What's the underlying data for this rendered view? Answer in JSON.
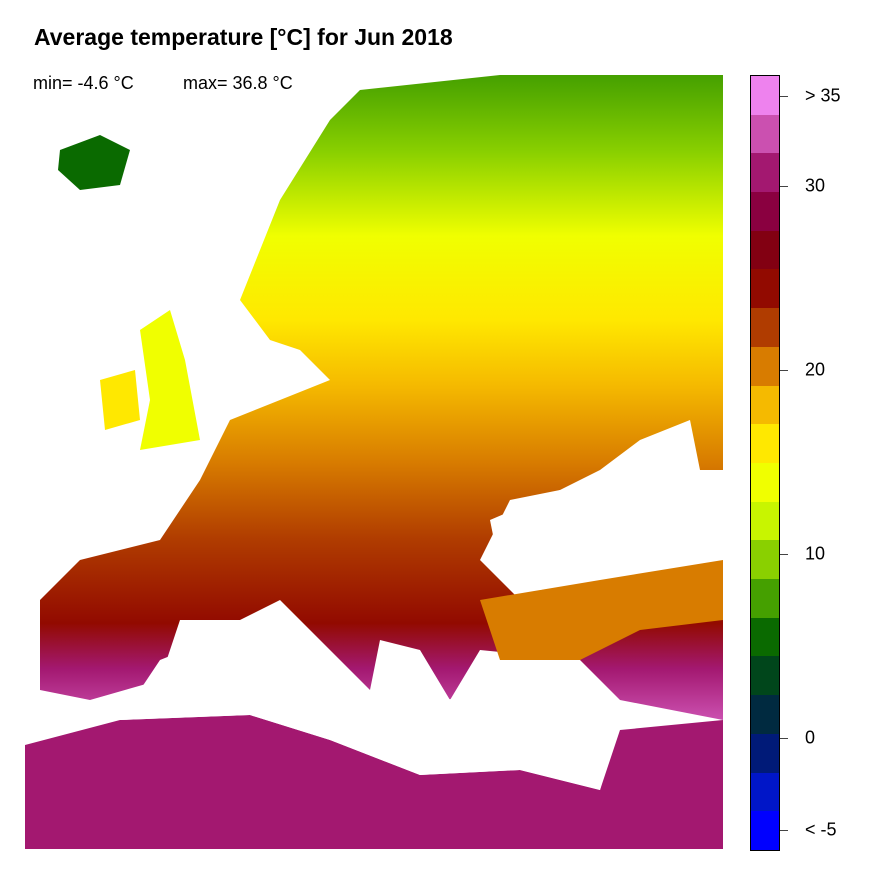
{
  "title": "Average temperature [°C] for Jun 2018",
  "stats": {
    "min": "min= -4.6 °C",
    "max": "max= 36.8 °C"
  },
  "colorbar": {
    "colors_bottom_to_top": [
      "#0000ff",
      "#0016c8",
      "#001a78",
      "#002a40",
      "#00461b",
      "#0a6a00",
      "#45a000",
      "#8ad000",
      "#c8f500",
      "#f0ff00",
      "#ffe800",
      "#f5ba00",
      "#d87c00",
      "#b03c00",
      "#920a00",
      "#820012",
      "#8a0040",
      "#a31870",
      "#cb50b0",
      "#ee82ee"
    ],
    "ticks": [
      {
        "label": "< -5",
        "value": -5
      },
      {
        "label": "0",
        "value": 0
      },
      {
        "label": "10",
        "value": 10
      },
      {
        "label": "20",
        "value": 20
      },
      {
        "label": "30",
        "value": 30
      },
      {
        "label": "> 35",
        "value": 35
      }
    ]
  }
}
